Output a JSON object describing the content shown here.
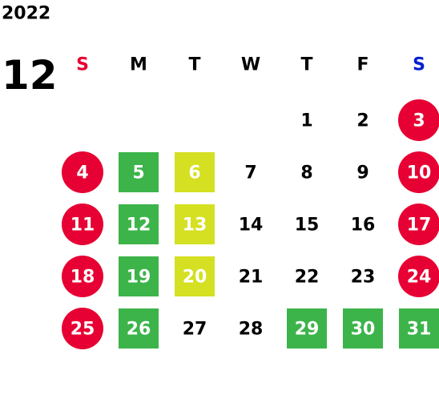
{
  "year": "2022",
  "month": "12",
  "weekdays": [
    {
      "label": "S",
      "color": "#e60033"
    },
    {
      "label": "M",
      "color": "#000000"
    },
    {
      "label": "T",
      "color": "#000000"
    },
    {
      "label": "W",
      "color": "#000000"
    },
    {
      "label": "T",
      "color": "#000000"
    },
    {
      "label": "F",
      "color": "#000000"
    },
    {
      "label": "S",
      "color": "#0020d0"
    }
  ],
  "weeks": [
    [
      null,
      null,
      null,
      null,
      {
        "label": "1"
      },
      {
        "label": "2"
      },
      {
        "label": "3",
        "color": "#e60033",
        "shape": "circle"
      }
    ],
    [
      {
        "label": "4",
        "color": "#e60033",
        "shape": "circle"
      },
      {
        "label": "5",
        "color": "#3cb44a",
        "shape": "square"
      },
      {
        "label": "6",
        "color": "#d4e021",
        "shape": "square"
      },
      {
        "label": "7"
      },
      {
        "label": "8"
      },
      {
        "label": "9"
      },
      {
        "label": "10",
        "color": "#e60033",
        "shape": "circle"
      }
    ],
    [
      {
        "label": "11",
        "color": "#e60033",
        "shape": "circle"
      },
      {
        "label": "12",
        "color": "#3cb44a",
        "shape": "square"
      },
      {
        "label": "13",
        "color": "#d4e021",
        "shape": "square"
      },
      {
        "label": "14"
      },
      {
        "label": "15"
      },
      {
        "label": "16"
      },
      {
        "label": "17",
        "color": "#e60033",
        "shape": "circle"
      }
    ],
    [
      {
        "label": "18",
        "color": "#e60033",
        "shape": "circle"
      },
      {
        "label": "19",
        "color": "#3cb44a",
        "shape": "square"
      },
      {
        "label": "20",
        "color": "#d4e021",
        "shape": "square"
      },
      {
        "label": "21"
      },
      {
        "label": "22"
      },
      {
        "label": "23"
      },
      {
        "label": "24",
        "color": "#e60033",
        "shape": "circle"
      }
    ],
    [
      {
        "label": "25",
        "color": "#e60033",
        "shape": "circle"
      },
      {
        "label": "26",
        "color": "#3cb44a",
        "shape": "square"
      },
      {
        "label": "27"
      },
      {
        "label": "28"
      },
      {
        "label": "29",
        "color": "#3cb44a",
        "shape": "square"
      },
      {
        "label": "30",
        "color": "#3cb44a",
        "shape": "square"
      },
      {
        "label": "31",
        "color": "#3cb44a",
        "shape": "square"
      }
    ]
  ]
}
